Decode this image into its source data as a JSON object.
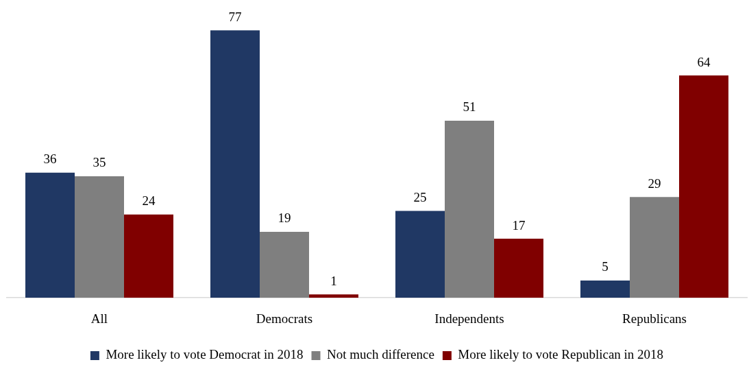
{
  "chart_data": {
    "type": "bar",
    "categories": [
      "All",
      "Democrats",
      "Independents",
      "Republicans"
    ],
    "series": [
      {
        "name": "More likely to vote Democrat in 2018",
        "color": "#203864",
        "values": [
          36,
          77,
          25,
          5
        ]
      },
      {
        "name": "Not much difference",
        "color": "#7f7f7f",
        "values": [
          35,
          19,
          51,
          29
        ]
      },
      {
        "name": "More likely to vote Republican in 2018",
        "color": "#800000",
        "values": [
          24,
          1,
          17,
          64
        ]
      }
    ],
    "data_labels": true,
    "legend": "bottom"
  }
}
